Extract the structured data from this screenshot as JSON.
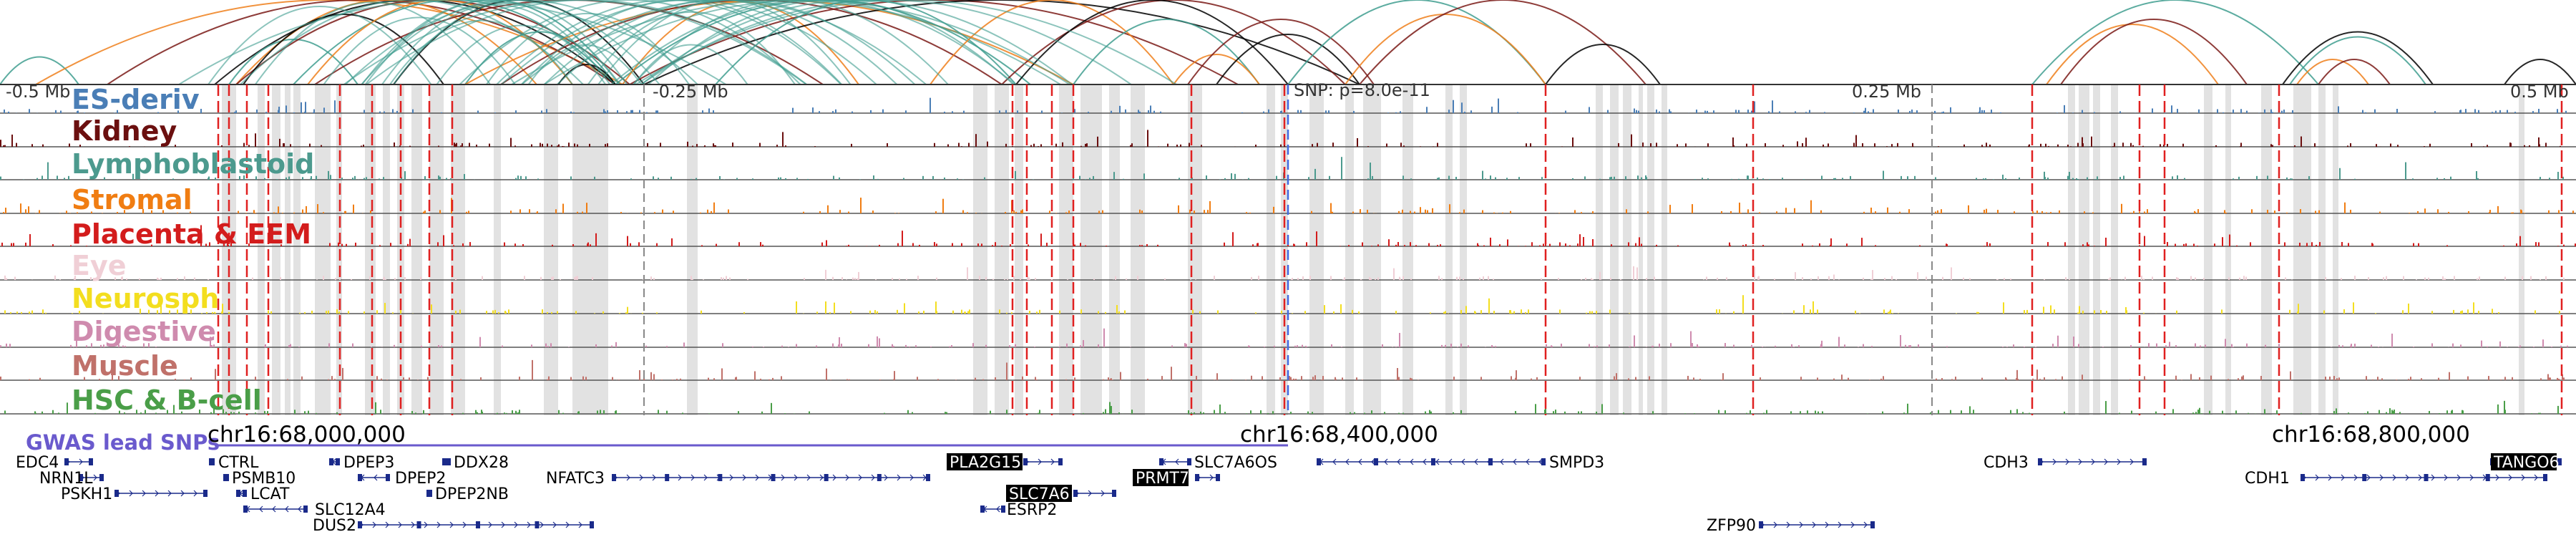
{
  "tracks": [
    {
      "name": "ES-deriv",
      "color": "#4a7eb6"
    },
    {
      "name": "Kidney",
      "color": "#6b0f0f"
    },
    {
      "name": "Lymphoblastoid",
      "color": "#4c9a8e"
    },
    {
      "name": "Stromal",
      "color": "#f07d12"
    },
    {
      "name": "Placenta & EEM",
      "color": "#d31c1c"
    },
    {
      "name": "Eye",
      "color": "#f0cfd6"
    },
    {
      "name": "Neurosph",
      "color": "#f3de1f"
    },
    {
      "name": "Digestive",
      "color": "#cf8bae"
    },
    {
      "name": "Muscle",
      "color": "#c0716a"
    },
    {
      "name": "HSC & B-cell",
      "color": "#4a9e48"
    }
  ],
  "axis": {
    "ticks": [
      "-0.5 Mb",
      "-0.25 Mb",
      "SNP: p=8.0e-11",
      "0.25 Mb",
      "0.5 Mb"
    ]
  },
  "coords": [
    "chr16:68,000,000",
    "chr16:68,400,000",
    "chr16:68,800,000"
  ],
  "gwas": {
    "title": "GWAS lead SNPs",
    "color": "#6a5acd"
  },
  "genes": [
    {
      "name": "EDC4",
      "strand": "+",
      "highlight": false
    },
    {
      "name": "NRN1L",
      "strand": "+",
      "highlight": false
    },
    {
      "name": "PSKH1",
      "strand": "+",
      "highlight": false
    },
    {
      "name": "CTRL",
      "strand": "-",
      "highlight": false
    },
    {
      "name": "PSMB10",
      "strand": "-",
      "highlight": false
    },
    {
      "name": "LCAT",
      "strand": "-",
      "highlight": false
    },
    {
      "name": "SLC12A4",
      "strand": "-",
      "highlight": false
    },
    {
      "name": "DUS2",
      "strand": "+",
      "highlight": false
    },
    {
      "name": "DPEP3",
      "strand": "-",
      "highlight": false
    },
    {
      "name": "DPEP2",
      "strand": "-",
      "highlight": false
    },
    {
      "name": "DDX28",
      "strand": "-",
      "highlight": false
    },
    {
      "name": "DPEP2NB",
      "strand": "+",
      "highlight": false
    },
    {
      "name": "NFATC3",
      "strand": "+",
      "highlight": false
    },
    {
      "name": "PLA2G15",
      "strand": "+",
      "highlight": true
    },
    {
      "name": "SLC7A6",
      "strand": "+",
      "highlight": true
    },
    {
      "name": "ESRP2",
      "strand": "-",
      "highlight": false
    },
    {
      "name": "SLC7A6OS",
      "strand": "-",
      "highlight": false
    },
    {
      "name": "PRMT7",
      "strand": "+",
      "highlight": true
    },
    {
      "name": "SMPD3",
      "strand": "-",
      "highlight": false
    },
    {
      "name": "ZFP90",
      "strand": "+",
      "highlight": false
    },
    {
      "name": "CDH3",
      "strand": "+",
      "highlight": false
    },
    {
      "name": "CDH1",
      "strand": "+",
      "highlight": false
    },
    {
      "name": "TANGO6",
      "strand": "+",
      "highlight": true
    }
  ],
  "colors": {
    "grayband": "#e2e2e2",
    "redline": "#e02020",
    "snpline": "#4169e1",
    "arcs": [
      "#3f9d8f",
      "#ee7f1b",
      "#7a1a16",
      "#000000"
    ]
  }
}
